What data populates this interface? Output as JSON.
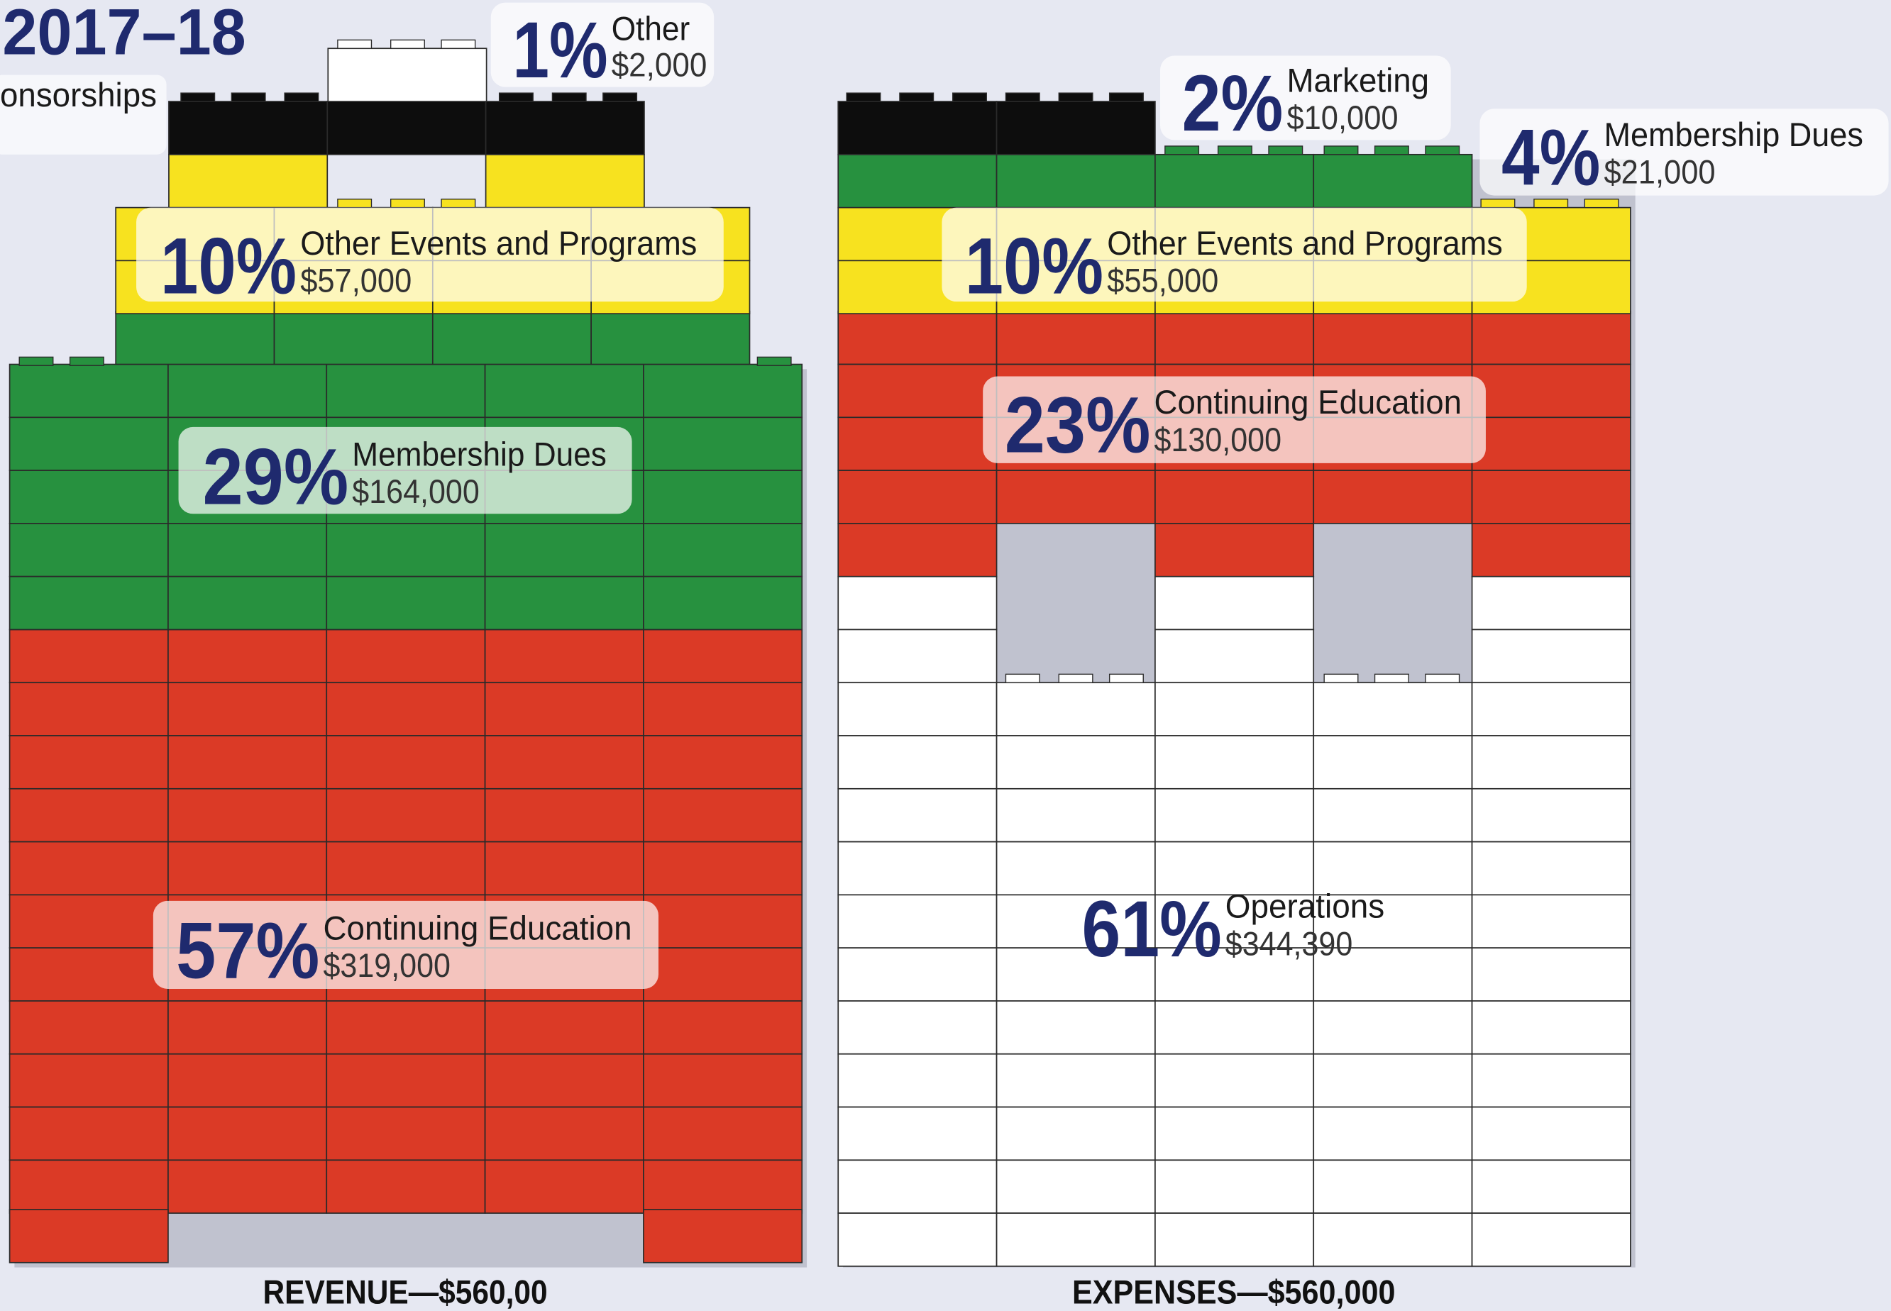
{
  "title": "2017–18",
  "cropped_label": "onsorships",
  "revenue": {
    "footer": "REVENUE—$560,00",
    "items": [
      {
        "percent": "1%",
        "name": "Other",
        "amount": "$2,000"
      },
      {
        "percent": "10%",
        "name": "Other Events and Programs",
        "amount": "$57,000"
      },
      {
        "percent": "29%",
        "name": "Membership Dues",
        "amount": "$164,000"
      },
      {
        "percent": "57%",
        "name": "Continuing Education",
        "amount": "$319,000"
      }
    ]
  },
  "expenses": {
    "footer": "EXPENSES—$560,000",
    "items": [
      {
        "percent": "2%",
        "name": "Marketing",
        "amount": "$10,000"
      },
      {
        "percent": "4%",
        "name": "Membership Dues",
        "amount": "$21,000"
      },
      {
        "percent": "10%",
        "name": "Other Events and Programs",
        "amount": "$55,000"
      },
      {
        "percent": "23%",
        "name": "Continuing Education",
        "amount": "$130,000"
      },
      {
        "percent": "61%",
        "name": "Operations",
        "amount": "$344,390"
      }
    ]
  }
}
